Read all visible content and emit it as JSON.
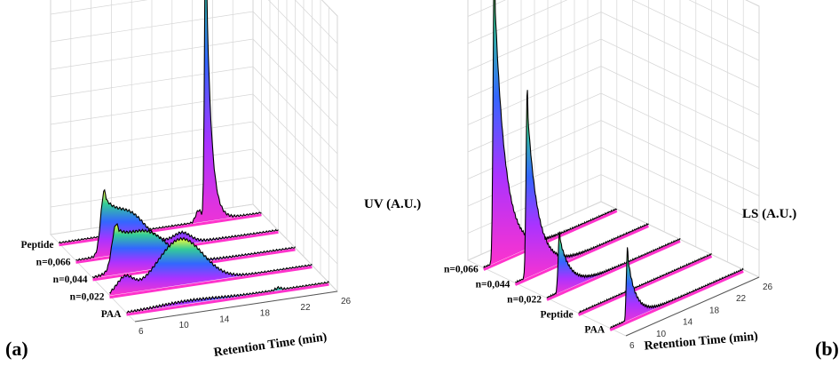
{
  "colors": {
    "gradient": [
      "#ff33cc",
      "#9933ff",
      "#3366ff",
      "#33cc99",
      "#ffff33"
    ],
    "grid": "#d6d6d6",
    "trace": "#000000"
  },
  "panels": [
    {
      "letter": "(a)"
    },
    {
      "letter": "(b)"
    }
  ],
  "chart_data": [
    {
      "type": "waterfall",
      "panel": "(a)",
      "xlabel": "Retention Time (min)",
      "zlabel": "UV (A.U.)",
      "x_ticks": [
        6,
        10,
        14,
        18,
        22,
        26
      ],
      "xlim": [
        6,
        26
      ],
      "series_axis_labels": [
        "Peptide",
        "n=0,066",
        "n=0,044",
        "n=0,022",
        "PAA"
      ],
      "series": [
        {
          "name": "Peptide",
          "peaks": [
            {
              "x": 20.5,
              "h": 1.0,
              "w": 0.12,
              "tail": 0.5
            },
            {
              "x": 19.8,
              "h": 0.04,
              "w": 0.3,
              "tail": 0
            }
          ]
        },
        {
          "name": "n=0,066",
          "peaks": [
            {
              "x": 8.8,
              "h": 0.2,
              "w": 0.35,
              "tail": 2.5
            },
            {
              "x": 11.5,
              "h": 0.07,
              "w": 1.5,
              "tail": 1.5
            },
            {
              "x": 16.5,
              "h": 0.03,
              "w": 0.8,
              "tail": 0
            }
          ]
        },
        {
          "name": "n=0,044",
          "peaks": [
            {
              "x": 8.3,
              "h": 0.14,
              "w": 0.4,
              "tail": 2.5
            },
            {
              "x": 11.5,
              "h": 0.09,
              "w": 2.0,
              "tail": 1.5
            },
            {
              "x": 15.5,
              "h": 0.03,
              "w": 0.6,
              "tail": 0
            }
          ]
        },
        {
          "name": "n=0,022",
          "peaks": [
            {
              "x": 13.0,
              "h": 0.15,
              "w": 2.2,
              "tail": 1.0
            },
            {
              "x": 7.5,
              "h": 0.05,
              "w": 0.8,
              "tail": 0
            }
          ]
        },
        {
          "name": "PAA",
          "peaks": [
            {
              "x": 12.0,
              "h": 0.01,
              "w": 3.0,
              "tail": 0
            },
            {
              "x": 21.0,
              "h": 0.008,
              "w": 0.3,
              "tail": 0
            }
          ]
        }
      ]
    },
    {
      "type": "waterfall",
      "panel": "(b)",
      "xlabel": "Retention Time (min)",
      "zlabel": "LS (A.U.)",
      "x_ticks": [
        6,
        10,
        14,
        18,
        22,
        26
      ],
      "xlim": [
        6,
        26
      ],
      "series_axis_labels": [
        "n=0,066",
        "n=0,044",
        "n=0,022",
        "Peptide",
        "PAA"
      ],
      "series": [
        {
          "name": "n=0,066",
          "peaks": [
            {
              "x": 7.6,
              "h": 1.0,
              "w": 0.18,
              "tail": 1.6
            }
          ]
        },
        {
          "name": "n=0,044",
          "peaks": [
            {
              "x": 7.8,
              "h": 0.62,
              "w": 0.18,
              "tail": 1.6
            }
          ]
        },
        {
          "name": "n=0,022",
          "peaks": [
            {
              "x": 7.9,
              "h": 0.2,
              "w": 0.2,
              "tail": 1.6
            }
          ]
        },
        {
          "name": "Peptide",
          "peaks": []
        },
        {
          "name": "PAA",
          "peaks": [
            {
              "x": 8.6,
              "h": 0.24,
              "w": 0.16,
              "tail": 1.2
            }
          ]
        }
      ]
    }
  ]
}
